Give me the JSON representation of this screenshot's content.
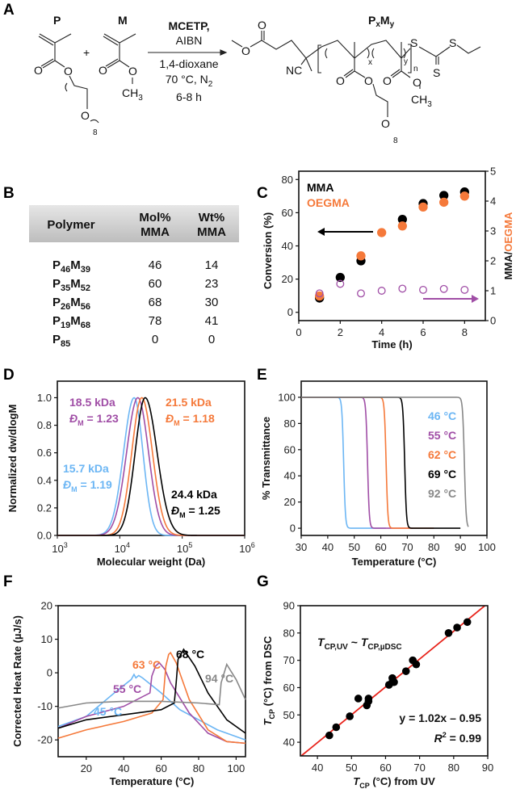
{
  "panels": {
    "A": "A",
    "B": "B",
    "C": "C",
    "D": "D",
    "E": "E",
    "F": "F",
    "G": "G"
  },
  "colors": {
    "blue": "#6cb6f4",
    "purple": "#a04ea6",
    "orange": "#f5793a",
    "black": "#000000",
    "gray": "#888888",
    "red": "#e8231b"
  },
  "scheme": {
    "monomer_p": "P",
    "monomer_m": "M",
    "plus": "+",
    "reagent1": "MCETP,",
    "reagent2": "AIBN",
    "solvent": "1,4-dioxane",
    "temp": "70 °C, N",
    "temp_sub": "2",
    "time": "6-8 h",
    "product": "P",
    "product_x": "x",
    "product_m": "M",
    "product_y": "y",
    "o": "O",
    "ch3": "CH",
    "ch3_sub": "3",
    "nc": "NC",
    "s": "S",
    "x": "x",
    "y": "y",
    "n": "n",
    "eight": "8"
  },
  "table": {
    "headers": [
      [
        "Polymer",
        ""
      ],
      [
        "Mol%",
        "MMA"
      ],
      [
        "Wt%",
        "MMA"
      ]
    ],
    "rows": [
      {
        "p": "P",
        "ps": "46",
        "m": "M",
        "ms": "39",
        "mol": "46",
        "wt": "14",
        "color": "#6cb6f4"
      },
      {
        "p": "P",
        "ps": "35",
        "m": "M",
        "ms": "52",
        "mol": "60",
        "wt": "23",
        "color": "#a04ea6"
      },
      {
        "p": "P",
        "ps": "26",
        "m": "M",
        "ms": "56",
        "mol": "68",
        "wt": "30",
        "color": "#f5793a"
      },
      {
        "p": "P",
        "ps": "19",
        "m": "M",
        "ms": "68",
        "mol": "78",
        "wt": "41",
        "color": "#000000"
      },
      {
        "p": "P",
        "ps": "85",
        "m": "",
        "ms": "",
        "mol": "0",
        "wt": "0",
        "color": "#888888"
      }
    ]
  },
  "chart_data": [
    {
      "panel": "C",
      "type": "scatter",
      "xlabel": "Time (h)",
      "ylabel": "Conversion (%)",
      "y2label_a": "MMA/",
      "y2label_b": "OEGMA",
      "xlim": [
        0,
        9
      ],
      "ylim": [
        -5,
        85
      ],
      "y2lim": [
        0,
        5
      ],
      "xticks": [
        0,
        2,
        4,
        6,
        8
      ],
      "yticks": [
        0,
        20,
        40,
        60,
        80
      ],
      "y2ticks": [
        0,
        1,
        2,
        3,
        4,
        5
      ],
      "legend": [
        "MMA",
        "OEGMA"
      ],
      "legend_placement": "top-left",
      "series": [
        {
          "name": "MMA",
          "axis": "left",
          "color": "#000000",
          "marker": "filled",
          "x": [
            1,
            2,
            3,
            5,
            6,
            7,
            8
          ],
          "y": [
            8.6,
            21,
            31,
            56,
            65.5,
            70.4,
            72.5
          ]
        },
        {
          "name": "OEGMA",
          "axis": "left",
          "color": "#f5793a",
          "marker": "filled",
          "x": [
            1,
            3,
            4,
            5,
            6,
            7,
            8
          ],
          "y": [
            9.8,
            34,
            48,
            52,
            63.4,
            66.3,
            70
          ]
        },
        {
          "axis": "right",
          "color": "#a04ea6",
          "marker": "open",
          "x": [
            1,
            2,
            3,
            4,
            5,
            6,
            7,
            8
          ],
          "y": [
            0.91,
            1.23,
            0.91,
            1.0,
            1.07,
            1.03,
            1.06,
            1.03
          ]
        }
      ]
    },
    {
      "panel": "D",
      "type": "line",
      "xlabel": "Molecular weight (Da)",
      "ylabel": "Normalized dw/dlogM",
      "xscale": "log",
      "xlim": [
        1000,
        1000000
      ],
      "ylim": [
        0,
        1.12
      ],
      "xticks_exp": [
        "3",
        "4",
        "5",
        "6"
      ],
      "yticks": [
        "0.0",
        "0.2",
        "0.4",
        "0.6",
        "0.8",
        "1.0"
      ],
      "series": [
        {
          "mw": "15.7 kDa",
          "disp": "= 1.19",
          "peak_mw": 17000,
          "color": "#6cb6f4"
        },
        {
          "mw": "18.5 kDa",
          "disp": "= 1.23",
          "peak_mw": 19500,
          "color": "#a04ea6"
        },
        {
          "mw": "21.5 kDa",
          "disp": "= 1.18",
          "peak_mw": 22500,
          "color": "#f5793a"
        },
        {
          "mw": "24.4 kDa",
          "disp": "= 1.25",
          "peak_mw": 25500,
          "color": "#000000"
        }
      ],
      "disp_symbol": "Đ",
      "disp_sub": "M"
    },
    {
      "panel": "E",
      "type": "line",
      "xlabel": "Temperature (°C)",
      "ylabel": "% Transmittance",
      "xlim": [
        30,
        100
      ],
      "ylim": [
        -5.5,
        112.3
      ],
      "xticks": [
        30,
        40,
        50,
        60,
        70,
        80,
        90,
        100
      ],
      "yticks": [
        0,
        20,
        40,
        60,
        80,
        100
      ],
      "series": [
        {
          "label": "46 °C",
          "cloud_point": 46,
          "color": "#6cb6f4",
          "end": 62
        },
        {
          "label": "55 °C",
          "cloud_point": 55,
          "color": "#a04ea6",
          "end": 72
        },
        {
          "label": "62 °C",
          "cloud_point": 62,
          "color": "#f5793a",
          "end": 80
        },
        {
          "label": "69 °C",
          "cloud_point": 69,
          "color": "#000000",
          "end": 90
        },
        {
          "label": "92 °C",
          "cloud_point": 91.5,
          "color": "#888888",
          "end": 93
        }
      ]
    },
    {
      "panel": "F",
      "type": "line",
      "xlabel": "Temperature (°C)",
      "ylabel": "Corrected Heat Rate (µJ/s)",
      "xlim": [
        5,
        105
      ],
      "ylim": [
        -25,
        20
      ],
      "xticks": [
        20,
        40,
        60,
        80,
        100
      ],
      "yticks": [
        20,
        10,
        0,
        -10,
        -20
      ],
      "series": [
        {
          "label": "45 °C",
          "color": "#6cb6f4",
          "x": [
            5,
            20,
            35,
            44,
            45.5,
            46.5,
            48,
            50,
            60,
            70,
            80,
            90,
            105
          ],
          "y": [
            -16,
            -13,
            -6,
            -2,
            -0.5,
            -1.5,
            -0.8,
            -1.5,
            -6,
            -11,
            -14,
            -17,
            -20
          ]
        },
        {
          "label": "55 °C",
          "color": "#a04ea6",
          "x": [
            5,
            20,
            40,
            54,
            55,
            57,
            59,
            62,
            65,
            75,
            85,
            95,
            105
          ],
          "y": [
            -16.5,
            -13,
            -10,
            -6,
            -1,
            2,
            3,
            1,
            -3,
            -12,
            -18,
            -20.5,
            -21
          ]
        },
        {
          "label": "63 °C",
          "color": "#f5793a",
          "x": [
            5,
            20,
            40,
            55,
            61,
            62.5,
            64,
            65,
            68,
            75,
            85,
            95,
            105
          ],
          "y": [
            -19.5,
            -17,
            -14.5,
            -12,
            -8,
            2,
            5.5,
            6,
            3,
            -8,
            -17,
            -20.5,
            -21
          ]
        },
        {
          "label": "68 °C",
          "color": "#000000",
          "x": [
            5,
            20,
            40,
            60,
            67,
            68,
            69,
            72,
            78,
            85,
            95,
            105
          ],
          "y": [
            -16.5,
            -14,
            -12.5,
            -11,
            -9,
            -3,
            4,
            7,
            2,
            -6,
            -14,
            -18
          ]
        },
        {
          "label": "94 °C",
          "color": "#888888",
          "x": [
            5,
            20,
            40,
            60,
            80,
            91,
            92,
            95,
            100,
            105
          ],
          "y": [
            -10.5,
            -9,
            -8.5,
            -8.5,
            -9,
            -9.5,
            -3,
            2.5,
            -2,
            -8
          ]
        }
      ]
    },
    {
      "panel": "G",
      "type": "scatter",
      "xlabel": "(°C) from UV",
      "ylabel": "(°C) from DSC",
      "axis_symbol": "T",
      "axis_sub": "CP",
      "xlim": [
        35,
        90
      ],
      "ylim": [
        35,
        90
      ],
      "xticks": [
        40,
        50,
        60,
        70,
        80,
        90
      ],
      "yticks": [
        40,
        50,
        60,
        70,
        80,
        90
      ],
      "points": {
        "x": [
          43.5,
          45.5,
          49.5,
          52,
          54.5,
          55,
          55,
          61,
          62,
          62,
          62.5,
          66,
          68,
          69,
          78.5,
          81,
          84
        ],
        "y": [
          42.5,
          45.5,
          49.5,
          56,
          53.5,
          55,
          56,
          61,
          62,
          63.5,
          62,
          66,
          70,
          68.5,
          80,
          82,
          84
        ]
      },
      "fit": {
        "slope": 1.02,
        "intercept": -0.95,
        "color": "#e8231b"
      },
      "annotation": {
        "t": "T",
        "s1": "CP,UV",
        "tilde": " ~ ",
        "s2": "CP,µDSC"
      },
      "equation": "y = 1.02x – 0.95",
      "r2_r": "R",
      "r2_sup": "2",
      "r2_val": " = 0.99"
    }
  ]
}
